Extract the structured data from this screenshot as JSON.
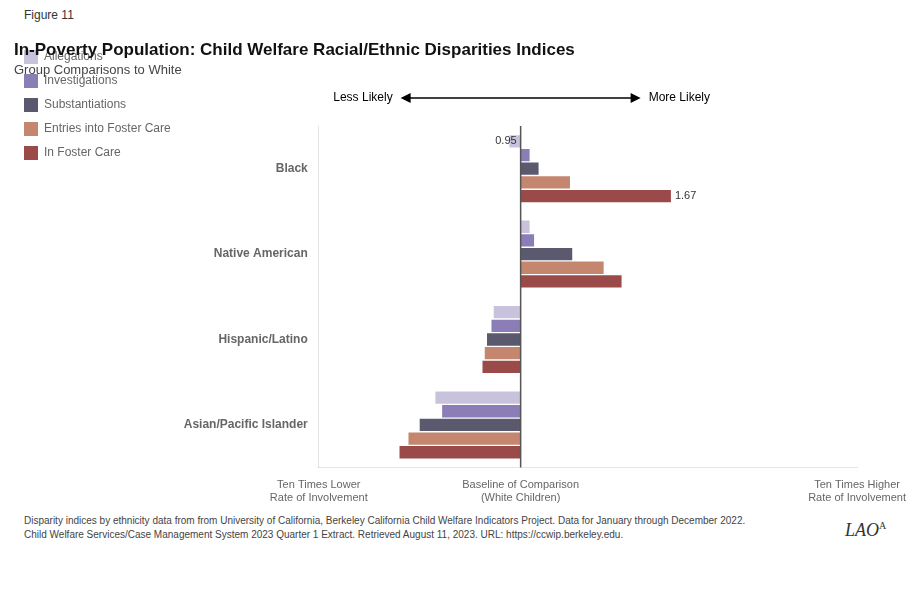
{
  "chart_data": {
    "type": "bar",
    "orientation": "horizontal",
    "figure_label": "Figure 11",
    "title": "In-Poverty Population: Child Welfare Racial/Ethnic Disparities Indices",
    "subtitle": "Group Comparisons to White",
    "categories": [
      "Black",
      "Native American",
      "Hispanic/Latino",
      "Asian/Pacific Islander"
    ],
    "series": [
      {
        "name": "Allegations",
        "color": "#c9c2dc",
        "values": [
          0.95,
          1.04,
          0.88,
          0.62
        ]
      },
      {
        "name": "Investigations",
        "color": "#8b7db5",
        "values": [
          1.04,
          1.06,
          0.87,
          0.65
        ]
      },
      {
        "name": "Substantiations",
        "color": "#5a596e",
        "values": [
          1.08,
          1.23,
          0.85,
          0.55
        ]
      },
      {
        "name": "Entries into Foster Care",
        "color": "#c4866e",
        "values": [
          1.22,
          1.37,
          0.84,
          0.5
        ]
      },
      {
        "name": "In Foster Care",
        "color": "#9b4a4a",
        "values": [
          1.67,
          1.45,
          0.83,
          0.46
        ]
      }
    ],
    "baseline": 1.0,
    "xlim": [
      0.1,
      2.5
    ],
    "xticks": [
      {
        "value": 0.1,
        "label": "Ten Times Lower\nRate of Involvement"
      },
      {
        "value": 1.0,
        "label": "Baseline of Comparison\n(White Children)"
      },
      {
        "value": 2.5,
        "label": "Ten Times Higher\nRate of Involvement"
      }
    ],
    "grid": false,
    "legend": "left",
    "arrow_labels": [
      "Less Likely",
      "More Likely"
    ],
    "annotations": [
      {
        "series": "Allegations",
        "category": "Black",
        "text": "0.95"
      },
      {
        "series": "In Foster Care",
        "category": "Black",
        "text": "1.67"
      }
    ],
    "footnotes": [
      "Disparity indices by ethnicity data from from University of California, Berkeley California Child Welfare Indicators Project. Data for January through December 2022.",
      "Child Welfare Services/Case Management System 2023 Quarter 1 Extract. Retrieved August 11, 2023. URL: https://ccwip.berkeley.edu."
    ],
    "logo": "LAO",
    "logo_mark": "A"
  }
}
